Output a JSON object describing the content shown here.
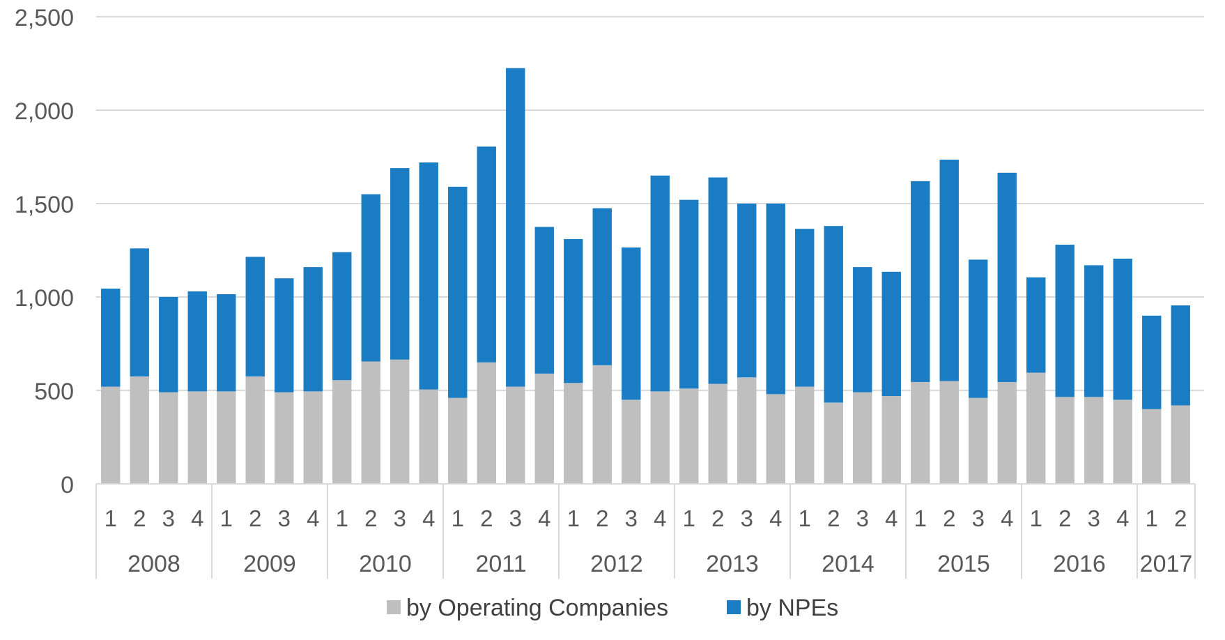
{
  "chart_data": {
    "type": "bar",
    "stacked": true,
    "quarters": [
      "1",
      "2",
      "3",
      "4",
      "1",
      "2",
      "3",
      "4",
      "1",
      "2",
      "3",
      "4",
      "1",
      "2",
      "3",
      "4",
      "1",
      "2",
      "3",
      "4",
      "1",
      "2",
      "3",
      "4",
      "1",
      "2",
      "3",
      "4",
      "1",
      "2",
      "3",
      "4",
      "1",
      "2",
      "3",
      "4",
      "1",
      "2"
    ],
    "years": [
      {
        "label": "2008",
        "quarters": 4
      },
      {
        "label": "2009",
        "quarters": 4
      },
      {
        "label": "2010",
        "quarters": 4
      },
      {
        "label": "2011",
        "quarters": 4
      },
      {
        "label": "2012",
        "quarters": 4
      },
      {
        "label": "2013",
        "quarters": 4
      },
      {
        "label": "2014",
        "quarters": 4
      },
      {
        "label": "2015",
        "quarters": 4
      },
      {
        "label": "2016",
        "quarters": 4
      },
      {
        "label": "2017",
        "quarters": 2
      }
    ],
    "series": [
      {
        "name": "by Operating Companies",
        "color": "#bfbfbf",
        "values": [
          520,
          575,
          490,
          495,
          495,
          575,
          490,
          495,
          555,
          655,
          665,
          505,
          460,
          650,
          520,
          590,
          540,
          635,
          450,
          495,
          510,
          535,
          570,
          480,
          520,
          435,
          490,
          470,
          545,
          550,
          460,
          545,
          595,
          465,
          465,
          450,
          400,
          420
        ]
      },
      {
        "name": "by NPEs",
        "color": "#1a7dc4",
        "values": [
          525,
          685,
          510,
          535,
          520,
          640,
          610,
          665,
          685,
          895,
          1025,
          1215,
          1130,
          1155,
          1705,
          785,
          770,
          840,
          815,
          1155,
          1010,
          1105,
          930,
          1020,
          845,
          945,
          670,
          665,
          1075,
          1185,
          740,
          1120,
          510,
          815,
          705,
          755,
          500,
          535
        ]
      }
    ],
    "y_ticks": [
      "0",
      "500",
      "1,000",
      "1,500",
      "2,000",
      "2,500"
    ],
    "ylim": [
      0,
      2500
    ],
    "grid": true,
    "legend_position": "bottom",
    "title": "",
    "xlabel": "",
    "ylabel": ""
  }
}
